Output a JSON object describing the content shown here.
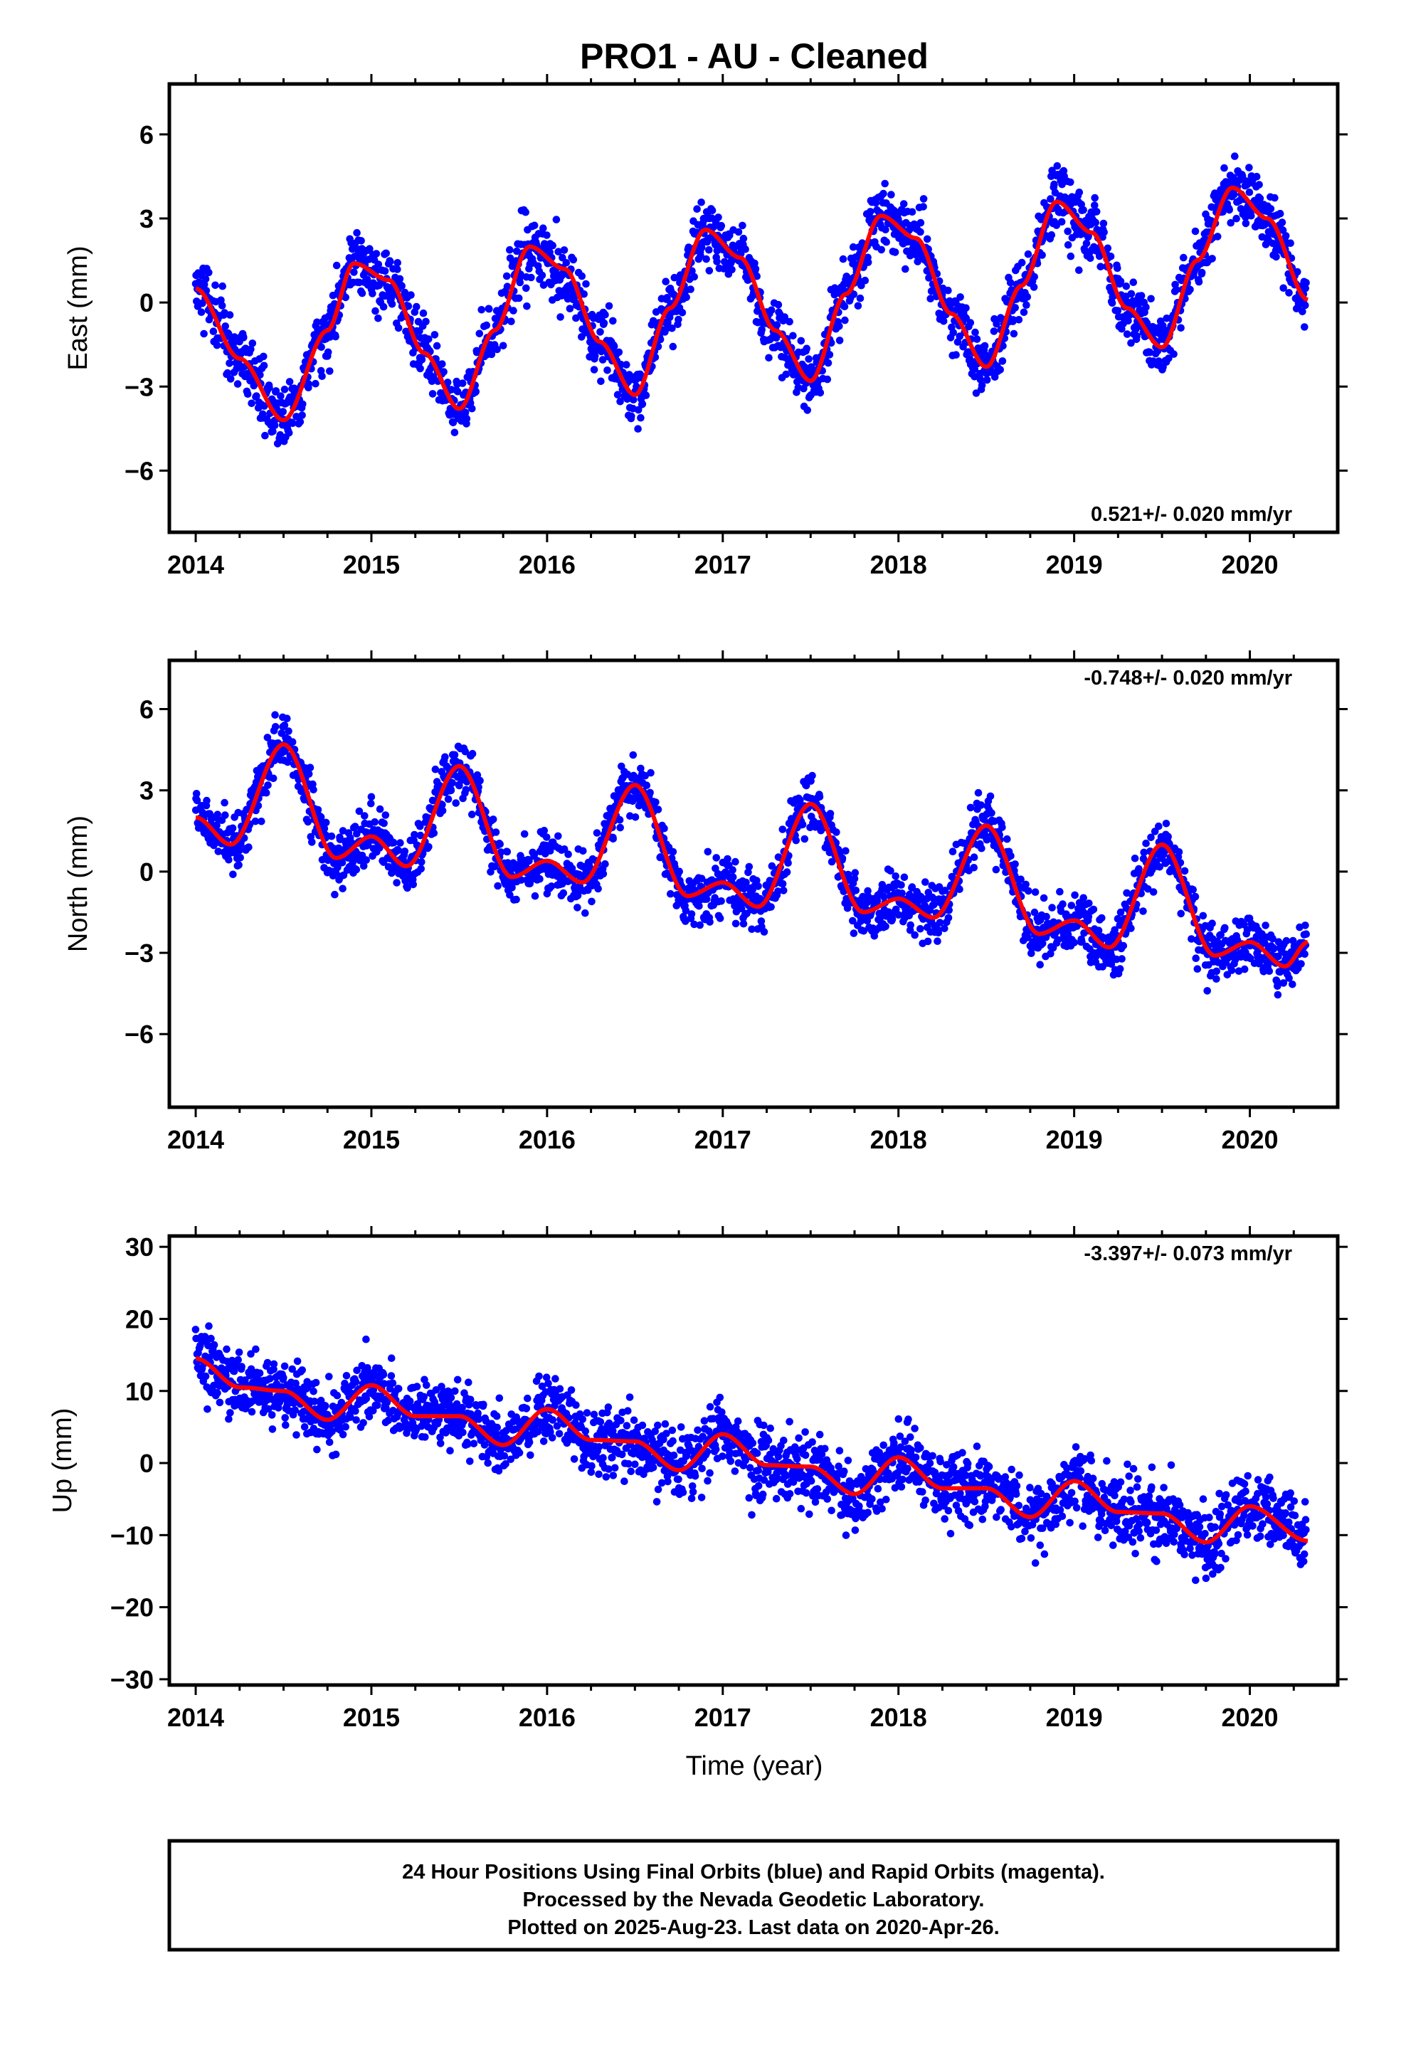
{
  "title": "PRO1  - AU - Cleaned",
  "x_axis_label": "Time (year)",
  "footer_lines": [
    "24 Hour Positions Using Final Orbits (blue) and Rapid Orbits (magenta).",
    "Processed by the Nevada Geodetic Laboratory.",
    "Plotted on 2025-Aug-23. Last data on 2020-Apr-26."
  ],
  "colors": {
    "data": "#0000ff",
    "model": "#ff0000",
    "frame": "#000000"
  },
  "chart_data": [
    {
      "type": "scatter",
      "name": "east",
      "ylabel": "East (mm)",
      "rate_text": "0.521+/- 0.020 mm/yr",
      "xlim": [
        2013.85,
        2020.5
      ],
      "ylim": [
        -8.2,
        7.8
      ],
      "xticks": [
        2014,
        2015,
        2016,
        2017,
        2018,
        2019,
        2020
      ],
      "xtick_labels": [
        "2014",
        "2015",
        "2016",
        "2017",
        "2018",
        "2019",
        "2020"
      ],
      "yticks": [
        -6,
        -3,
        0,
        3,
        6
      ],
      "ytick_labels": [
        "−6",
        "−3",
        "0",
        "3",
        "6"
      ],
      "model": {
        "trend_mm_per_yr": 0.521,
        "x": [
          2014.0,
          2014.25,
          2014.5,
          2014.75,
          2014.9,
          2015.1,
          2015.3,
          2015.5,
          2015.7,
          2015.9,
          2016.1,
          2016.3,
          2016.5,
          2016.7,
          2016.9,
          2017.1,
          2017.3,
          2017.5,
          2017.7,
          2017.9,
          2018.1,
          2018.3,
          2018.5,
          2018.7,
          2018.9,
          2019.1,
          2019.3,
          2019.5,
          2019.7,
          2019.9,
          2020.1,
          2020.33
        ],
        "y": [
          0.5,
          -2.0,
          -4.2,
          -1.0,
          1.4,
          0.8,
          -1.8,
          -3.8,
          -1.0,
          2.0,
          1.2,
          -1.4,
          -3.3,
          -0.2,
          2.6,
          1.6,
          -1.0,
          -2.8,
          0.3,
          3.1,
          2.3,
          -0.4,
          -2.3,
          0.6,
          3.6,
          2.5,
          -0.2,
          -1.6,
          1.5,
          4.1,
          3.0,
          0.1
        ]
      },
      "scatter": {
        "count": 2200,
        "x_start": 2014.0,
        "x_end": 2020.32,
        "noise_sd_mm": 1.15
      }
    },
    {
      "type": "scatter",
      "name": "north",
      "ylabel": "North (mm)",
      "rate_text": "-0.748+/- 0.020 mm/yr",
      "xlim": [
        2013.85,
        2020.5
      ],
      "ylim": [
        -8.7,
        7.8
      ],
      "xticks": [
        2014,
        2015,
        2016,
        2017,
        2018,
        2019,
        2020
      ],
      "xtick_labels": [
        "2014",
        "2015",
        "2016",
        "2017",
        "2018",
        "2019",
        "2020"
      ],
      "yticks": [
        -6,
        -3,
        0,
        3,
        6
      ],
      "ytick_labels": [
        "−6",
        "−3",
        "0",
        "3",
        "6"
      ],
      "model": {
        "trend_mm_per_yr": -0.748,
        "x": [
          2014.0,
          2014.2,
          2014.5,
          2014.8,
          2015.0,
          2015.2,
          2015.5,
          2015.8,
          2016.0,
          2016.2,
          2016.5,
          2016.8,
          2017.0,
          2017.2,
          2017.5,
          2017.8,
          2018.0,
          2018.2,
          2018.5,
          2018.8,
          2019.0,
          2019.2,
          2019.5,
          2019.8,
          2020.0,
          2020.2,
          2020.33
        ],
        "y": [
          2.0,
          1.0,
          4.7,
          0.5,
          1.3,
          0.2,
          3.9,
          -0.2,
          0.4,
          -0.4,
          3.2,
          -0.9,
          -0.4,
          -1.3,
          2.5,
          -1.5,
          -1.0,
          -1.7,
          1.7,
          -2.3,
          -1.8,
          -2.8,
          1.0,
          -3.1,
          -2.6,
          -3.5,
          -2.6
        ]
      },
      "scatter": {
        "count": 2200,
        "x_start": 2014.0,
        "x_end": 2020.32,
        "noise_sd_mm": 1.05
      }
    },
    {
      "type": "scatter",
      "name": "up",
      "ylabel": "Up (mm)",
      "rate_text": "-3.397+/- 0.073 mm/yr",
      "xlim": [
        2013.85,
        2020.5
      ],
      "ylim": [
        -30.8,
        31.5
      ],
      "xticks": [
        2014,
        2015,
        2016,
        2017,
        2018,
        2019,
        2020
      ],
      "xtick_labels": [
        "2014",
        "2015",
        "2016",
        "2017",
        "2018",
        "2019",
        "2020"
      ],
      "yticks": [
        -30,
        -20,
        -10,
        0,
        10,
        20,
        30
      ],
      "ytick_labels": [
        "−30",
        "−20",
        "−10",
        "0",
        "10",
        "20",
        "30"
      ],
      "model": {
        "trend_mm_per_yr": -3.397,
        "x": [
          2014.0,
          2014.25,
          2014.5,
          2014.75,
          2015.0,
          2015.25,
          2015.5,
          2015.75,
          2016.0,
          2016.25,
          2016.5,
          2016.75,
          2017.0,
          2017.25,
          2017.5,
          2017.75,
          2018.0,
          2018.25,
          2018.5,
          2018.75,
          2019.0,
          2019.25,
          2019.5,
          2019.75,
          2020.0,
          2020.33
        ],
        "y": [
          14.5,
          10.5,
          10.0,
          6.0,
          10.8,
          6.5,
          6.5,
          2.5,
          7.5,
          3.2,
          3.0,
          -1.0,
          4.0,
          -0.3,
          -0.5,
          -4.3,
          0.8,
          -3.5,
          -3.5,
          -7.5,
          -2.5,
          -6.8,
          -7.0,
          -11.0,
          -6.0,
          -10.8
        ]
      },
      "scatter": {
        "count": 2200,
        "x_start": 2014.0,
        "x_end": 2020.32,
        "noise_sd_mm": 4.6
      }
    }
  ]
}
